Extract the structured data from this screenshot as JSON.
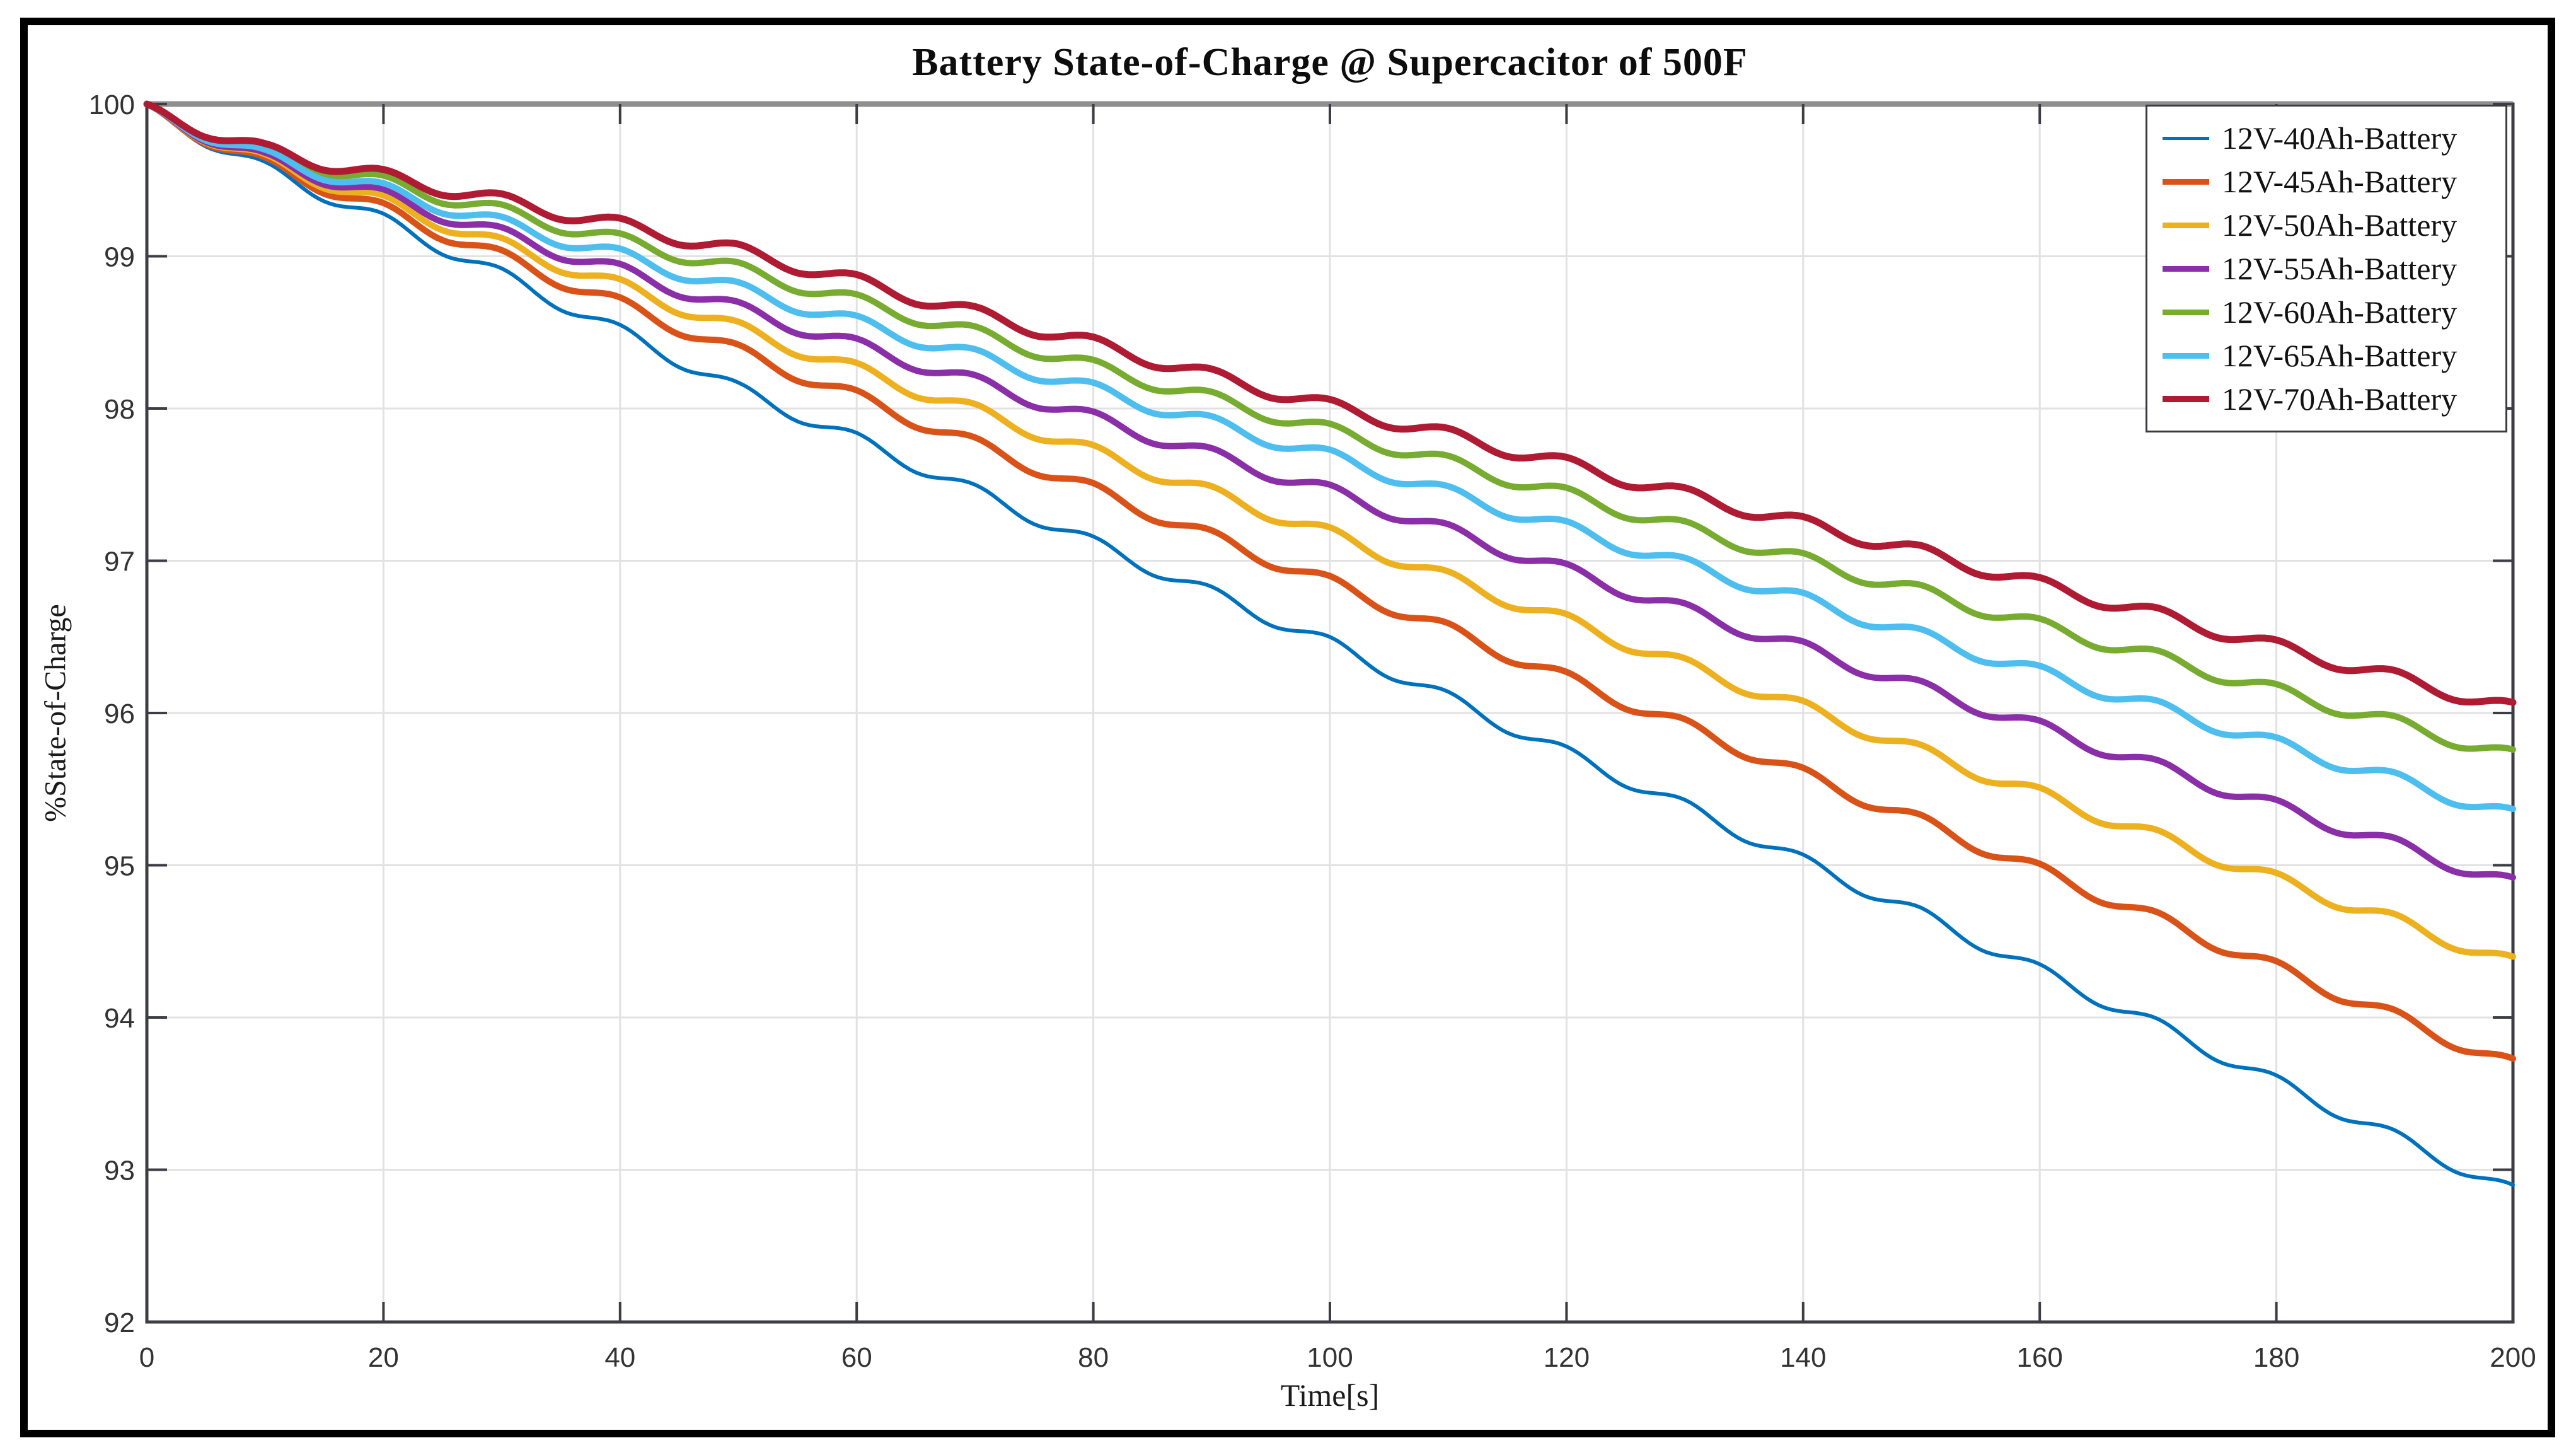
{
  "figure": {
    "background": "#ffffff",
    "outer_border_color": "#000000"
  },
  "chart_data": {
    "type": "line",
    "title": "Battery State-of-Charge @ Supercacitor of 500F",
    "xlabel": "Time[s]",
    "ylabel": "%State-of-Charge",
    "xlim": [
      0,
      200
    ],
    "ylim": [
      92,
      100
    ],
    "x_ticks": [
      0,
      20,
      40,
      60,
      80,
      100,
      120,
      140,
      160,
      180,
      200
    ],
    "y_ticks": [
      92,
      93,
      94,
      95,
      96,
      97,
      98,
      99,
      100
    ],
    "grid": true,
    "legend_position": "top-right",
    "axis_color": "#3d3d46",
    "top_axis_color": "#8f8f8f",
    "grid_color": "#e2e2e2",
    "tick_label_color": "#333333",
    "x_step_s": 10,
    "ripple": {
      "period_s": 10,
      "depth_pct": 0.09
    },
    "series": [
      {
        "name": "12V-40Ah-Battery",
        "color": "#0072BD",
        "line_width": 6,
        "values": [
          100,
          99.62,
          99.28,
          98.92,
          98.55,
          98.17,
          97.84,
          97.5,
          97.16,
          96.83,
          96.5,
          96.14,
          95.78,
          95.43,
          95.07,
          94.72,
          94.35,
          93.99,
          93.62,
          93.26,
          92.9
        ]
      },
      {
        "name": "12V-45Ah-Battery",
        "color": "#D95319",
        "line_width": 10,
        "values": [
          100,
          99.65,
          99.35,
          99.04,
          98.73,
          98.42,
          98.12,
          97.81,
          97.51,
          97.2,
          96.9,
          96.59,
          96.27,
          95.96,
          95.64,
          95.33,
          95.01,
          94.69,
          94.37,
          94.05,
          93.73
        ]
      },
      {
        "name": "12V-50Ah-Battery",
        "color": "#EDB120",
        "line_width": 10,
        "values": [
          100,
          99.67,
          99.4,
          99.12,
          98.85,
          98.57,
          98.3,
          98.03,
          97.76,
          97.49,
          97.22,
          96.93,
          96.65,
          96.36,
          96.08,
          95.79,
          95.51,
          95.23,
          94.95,
          94.68,
          94.4
        ]
      },
      {
        "name": "12V-55Ah-Battery",
        "color": "#8A2FA8",
        "line_width": 10,
        "values": [
          100,
          99.68,
          99.44,
          99.19,
          98.95,
          98.7,
          98.46,
          98.22,
          97.98,
          97.74,
          97.5,
          97.24,
          96.98,
          96.72,
          96.47,
          96.21,
          95.95,
          95.69,
          95.43,
          95.18,
          94.92
        ]
      },
      {
        "name": "12V-60Ah-Battery",
        "color": "#77AC30",
        "line_width": 10,
        "values": [
          100,
          99.72,
          99.53,
          99.34,
          99.15,
          98.96,
          98.75,
          98.54,
          98.32,
          98.11,
          97.9,
          97.69,
          97.48,
          97.26,
          97.05,
          96.84,
          96.62,
          96.41,
          96.19,
          95.98,
          95.76
        ]
      },
      {
        "name": "12V-65Ah-Battery",
        "color": "#4DBEEE",
        "line_width": 10,
        "values": [
          100,
          99.7,
          99.48,
          99.26,
          99.05,
          98.83,
          98.61,
          98.39,
          98.17,
          97.95,
          97.73,
          97.49,
          97.26,
          97.02,
          96.79,
          96.55,
          96.31,
          96.08,
          95.84,
          95.61,
          95.37
        ]
      },
      {
        "name": "12V-70Ah-Battery",
        "color": "#AE1B33",
        "line_width": 11,
        "values": [
          100,
          99.74,
          99.57,
          99.41,
          99.25,
          99.08,
          98.88,
          98.67,
          98.47,
          98.26,
          98.06,
          97.87,
          97.68,
          97.48,
          97.29,
          97.1,
          96.89,
          96.69,
          96.48,
          96.28,
          96.07
        ]
      }
    ]
  }
}
